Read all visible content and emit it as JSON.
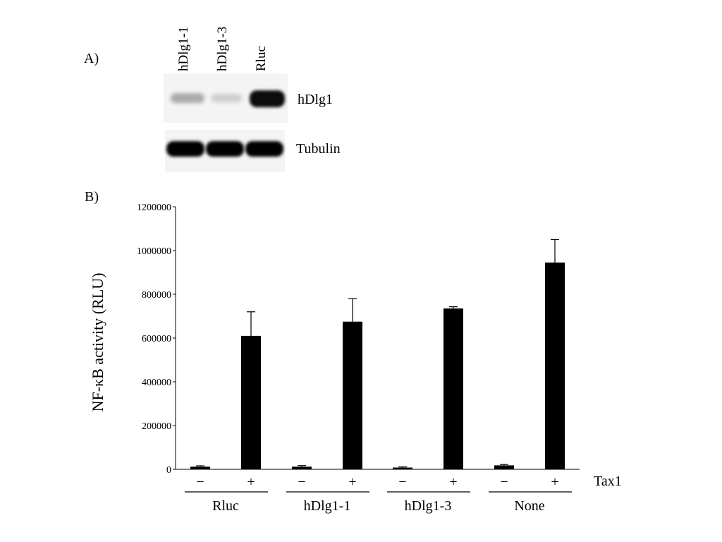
{
  "panel_a": {
    "label": "A)",
    "lanes": [
      "hDlg1-1",
      "hDlg1-3",
      "Rluc"
    ],
    "blots": [
      {
        "label": "hDlg1",
        "band_intensity": [
          0.3,
          0.15,
          1.0
        ]
      },
      {
        "label": "Tubulin",
        "band_intensity": [
          1.0,
          1.0,
          1.0
        ]
      }
    ]
  },
  "panel_b": {
    "label": "B)"
  },
  "chart_data": {
    "type": "bar",
    "ylabel": "NF-κB activity (RLU)",
    "ylim": [
      0,
      1200000
    ],
    "yticks": [
      "0",
      "200000",
      "400000",
      "600000",
      "800000",
      "1000000",
      "1200000"
    ],
    "ytick_values": [
      0,
      200000,
      400000,
      600000,
      800000,
      1000000,
      1200000
    ],
    "tax_label": "Tax1",
    "groups": [
      "Rluc",
      "hDlg1-1",
      "hDlg1-3",
      "None"
    ],
    "conditions": [
      "−",
      "+"
    ],
    "bars": [
      {
        "group": "Rluc",
        "condition": "−",
        "value": 12000,
        "error": 4000
      },
      {
        "group": "Rluc",
        "condition": "+",
        "value": 610000,
        "error": 110000
      },
      {
        "group": "hDlg1-1",
        "condition": "−",
        "value": 12000,
        "error": 5000
      },
      {
        "group": "hDlg1-1",
        "condition": "+",
        "value": 675000,
        "error": 105000
      },
      {
        "group": "hDlg1-3",
        "condition": "−",
        "value": 8000,
        "error": 3000
      },
      {
        "group": "hDlg1-3",
        "condition": "+",
        "value": 735000,
        "error": 8000
      },
      {
        "group": "None",
        "condition": "−",
        "value": 18000,
        "error": 4000
      },
      {
        "group": "None",
        "condition": "+",
        "value": 945000,
        "error": 105000
      }
    ],
    "grid": false
  }
}
